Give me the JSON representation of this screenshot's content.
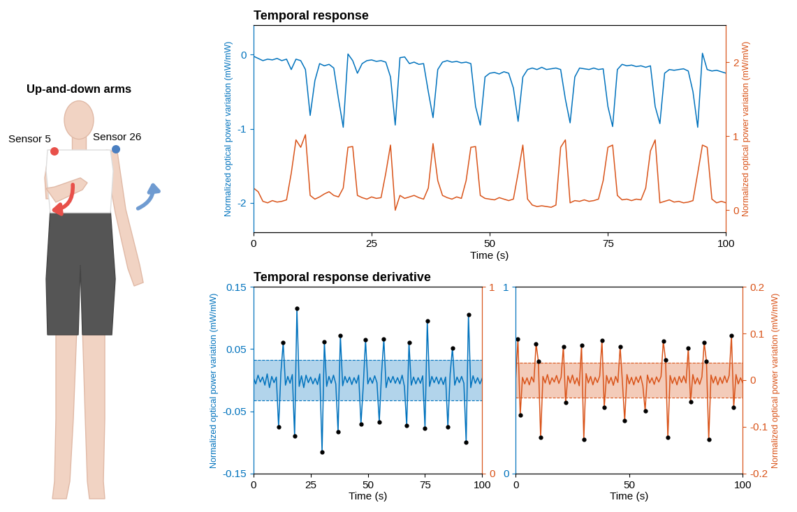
{
  "illustration": {
    "title": "Up-and-down arms",
    "sensors": [
      {
        "label": "Sensor 5"
      },
      {
        "label": "Sensor 26"
      }
    ]
  },
  "chart_data": [
    {
      "type": "line",
      "title": "Temporal response",
      "x_label": "Time (s)",
      "y_label": "Normalized optical power variation (mW/mW)",
      "y2_label": "Normalized optical power variation (mW/mW)",
      "x": [
        0,
        1,
        2,
        3,
        4,
        5,
        6,
        7,
        8,
        9,
        10,
        11,
        12,
        13,
        14,
        15,
        16,
        17,
        18,
        19,
        20,
        21,
        22,
        23,
        24,
        25,
        26,
        27,
        28,
        29,
        30,
        31,
        32,
        33,
        34,
        35,
        36,
        37,
        38,
        39,
        40,
        41,
        42,
        43,
        44,
        45,
        46,
        47,
        48,
        49,
        50,
        51,
        52,
        53,
        54,
        55,
        56,
        57,
        58,
        59,
        60,
        61,
        62,
        63,
        64,
        65,
        66,
        67,
        68,
        69,
        70,
        71,
        72,
        73,
        74,
        75,
        76,
        77,
        78,
        79,
        80,
        81,
        82,
        83,
        84,
        85,
        86,
        87,
        88,
        89,
        90,
        91,
        92,
        93,
        94,
        95,
        96,
        97,
        98,
        99,
        100
      ],
      "xlim": [
        0,
        100
      ],
      "xticks": [
        0,
        25,
        50,
        75,
        100
      ],
      "ylim": [
        -2.4,
        0.4
      ],
      "yticks": [
        -2,
        -1,
        0
      ],
      "y2lim": [
        -0.3,
        2.5
      ],
      "y2ticks": [
        0,
        1,
        2
      ],
      "series": [
        {
          "color": "#0072BD",
          "values": [
            -0.02,
            -0.05,
            -0.08,
            -0.06,
            -0.07,
            -0.05,
            -0.08,
            -0.06,
            -0.2,
            -0.06,
            -0.08,
            -0.2,
            -0.82,
            -0.35,
            -0.12,
            -0.15,
            -0.13,
            -0.18,
            -0.6,
            -0.98,
            0.01,
            -0.08,
            -0.25,
            -0.12,
            -0.08,
            -0.07,
            -0.09,
            -0.08,
            -0.1,
            -0.3,
            -0.95,
            -0.04,
            -0.03,
            -0.12,
            -0.1,
            -0.13,
            -0.12,
            -0.5,
            -0.85,
            -0.2,
            -0.1,
            -0.08,
            -0.1,
            -0.09,
            -0.11,
            -0.1,
            -0.12,
            -0.7,
            -0.95,
            -0.3,
            -0.25,
            -0.24,
            -0.26,
            -0.23,
            -0.25,
            -0.45,
            -0.9,
            -0.3,
            -0.2,
            -0.18,
            -0.2,
            -0.17,
            -0.2,
            -0.19,
            -0.18,
            -0.2,
            -0.6,
            -0.92,
            -0.3,
            -0.18,
            -0.19,
            -0.2,
            -0.18,
            -0.2,
            -0.19,
            -0.7,
            -0.97,
            -0.2,
            -0.13,
            -0.15,
            -0.14,
            -0.16,
            -0.15,
            -0.17,
            -0.15,
            -0.7,
            -0.93,
            -0.25,
            -0.2,
            -0.21,
            -0.2,
            -0.19,
            -0.22,
            -0.5,
            -0.98,
            0.02,
            -0.2,
            -0.22,
            -0.21,
            -0.23,
            -0.25
          ]
        },
        {
          "color": "#D95319",
          "axis": "y2",
          "values": [
            0.3,
            0.25,
            0.12,
            0.1,
            0.13,
            0.11,
            0.12,
            0.14,
            0.5,
            0.95,
            0.85,
            1.02,
            0.2,
            0.15,
            0.18,
            0.22,
            0.25,
            0.2,
            0.18,
            0.3,
            0.85,
            0.86,
            0.2,
            0.17,
            0.15,
            0.18,
            0.16,
            0.17,
            0.5,
            0.88,
            0.0,
            0.2,
            0.16,
            0.18,
            0.2,
            0.17,
            0.15,
            0.3,
            0.9,
            0.4,
            0.2,
            0.17,
            0.15,
            0.18,
            0.16,
            0.4,
            0.85,
            0.86,
            0.2,
            0.16,
            0.15,
            0.14,
            0.17,
            0.15,
            0.13,
            0.15,
            0.5,
            0.88,
            0.15,
            0.07,
            0.05,
            0.06,
            0.05,
            0.04,
            0.07,
            0.85,
            0.95,
            0.1,
            0.13,
            0.12,
            0.14,
            0.12,
            0.13,
            0.15,
            0.4,
            0.85,
            0.88,
            0.2,
            0.14,
            0.15,
            0.13,
            0.15,
            0.14,
            0.3,
            0.8,
            0.95,
            0.1,
            0.12,
            0.14,
            0.11,
            0.12,
            0.1,
            0.11,
            0.13,
            0.5,
            0.88,
            0.85,
            0.15,
            0.1,
            0.12,
            0.1
          ]
        }
      ]
    },
    {
      "type": "line",
      "title": "Temporal response derivative",
      "x_label": "Time (s)",
      "y_label": "Normalized optical power variation (mW/mW)",
      "x": [
        0,
        1,
        2,
        3,
        4,
        5,
        6,
        7,
        8,
        9,
        10,
        11,
        12,
        13,
        14,
        15,
        16,
        17,
        18,
        19,
        20,
        21,
        22,
        23,
        24,
        25,
        26,
        27,
        28,
        29,
        30,
        31,
        32,
        33,
        34,
        35,
        36,
        37,
        38,
        39,
        40,
        41,
        42,
        43,
        44,
        45,
        46,
        47,
        48,
        49,
        50,
        51,
        52,
        53,
        54,
        55,
        56,
        57,
        58,
        59,
        60,
        61,
        62,
        63,
        64,
        65,
        66,
        67,
        68,
        69,
        70,
        71,
        72,
        73,
        74,
        75,
        76,
        77,
        78,
        79,
        80,
        81,
        82,
        83,
        84,
        85,
        86,
        87,
        88,
        89,
        90,
        91,
        92,
        93,
        94,
        95,
        96,
        97,
        98,
        99,
        100
      ],
      "xlim": [
        0,
        100
      ],
      "xticks": [
        0,
        25,
        50,
        75,
        100
      ],
      "ylim": [
        -0.15,
        0.15
      ],
      "yticks": [
        -0.15,
        -0.05,
        0.05,
        0.15
      ],
      "y2lim": [
        0,
        1
      ],
      "y2ticks": [
        0,
        1
      ],
      "series": [
        {
          "color": "#0072BD",
          "band": [
            -0.033,
            0.033
          ],
          "values": [
            0.004,
            -0.006,
            0.008,
            -0.003,
            0.005,
            -0.008,
            0.01,
            -0.012,
            0.006,
            -0.004,
            0.005,
            -0.075,
            0.012,
            0.06,
            -0.008,
            0.006,
            -0.005,
            0.009,
            -0.09,
            0.115,
            -0.01,
            0.007,
            -0.012,
            0.008,
            -0.004,
            0.005,
            -0.006,
            0.003,
            -0.007,
            0.01,
            -0.115,
            0.062,
            -0.01,
            0.006,
            -0.005,
            0.008,
            -0.006,
            -0.083,
            0.072,
            -0.009,
            0.006,
            -0.004,
            0.005,
            -0.007,
            0.004,
            -0.005,
            0.008,
            -0.07,
            -0.01,
            0.065,
            -0.006,
            0.004,
            -0.005,
            0.007,
            -0.004,
            -0.067,
            0.01,
            0.066,
            -0.012,
            0.005,
            -0.004,
            0.006,
            -0.005,
            0.004,
            -0.006,
            0.008,
            -0.01,
            -0.073,
            0.06,
            -0.008,
            0.005,
            -0.006,
            0.004,
            -0.005,
            0.007,
            -0.077,
            0.095,
            -0.01,
            0.006,
            -0.004,
            0.005,
            -0.006,
            0.004,
            -0.007,
            0.005,
            -0.075,
            0.01,
            0.052,
            -0.008,
            0.005,
            -0.004,
            0.006,
            -0.005,
            -0.1,
            0.105,
            -0.012,
            0.007,
            -0.005,
            0.004,
            -0.006,
            0.003
          ],
          "peaks": {
            "color": "#000000",
            "marker": "o",
            "x": [
              11,
              13,
              18,
              19,
              30,
              31,
              37,
              38,
              47,
              49,
              55,
              57,
              67,
              68,
              75,
              76,
              85,
              87,
              93,
              94
            ],
            "values": [
              -0.075,
              0.06,
              -0.09,
              0.115,
              -0.115,
              0.062,
              -0.083,
              0.072,
              -0.07,
              0.065,
              -0.067,
              0.066,
              -0.073,
              0.06,
              -0.077,
              0.095,
              -0.075,
              0.052,
              -0.1,
              0.105
            ]
          }
        }
      ]
    },
    {
      "type": "line",
      "x_label": "Time (s)",
      "y2_label": "Normalized optical power variation (mW/mW)",
      "x": [
        0,
        1,
        2,
        3,
        4,
        5,
        6,
        7,
        8,
        9,
        10,
        11,
        12,
        13,
        14,
        15,
        16,
        17,
        18,
        19,
        20,
        21,
        22,
        23,
        24,
        25,
        26,
        27,
        28,
        29,
        30,
        31,
        32,
        33,
        34,
        35,
        36,
        37,
        38,
        39,
        40,
        41,
        42,
        43,
        44,
        45,
        46,
        47,
        48,
        49,
        50,
        51,
        52,
        53,
        54,
        55,
        56,
        57,
        58,
        59,
        60,
        61,
        62,
        63,
        64,
        65,
        66,
        67,
        68,
        69,
        70,
        71,
        72,
        73,
        74,
        75,
        76,
        77,
        78,
        79,
        80,
        81,
        82,
        83,
        84,
        85,
        86,
        87,
        88,
        89,
        90,
        91,
        92,
        93,
        94,
        95,
        96,
        97,
        98,
        99,
        100
      ],
      "xlim": [
        0,
        100
      ],
      "xticks": [
        0,
        50,
        100
      ],
      "ylim": [
        0,
        1
      ],
      "yticks": [
        0,
        1
      ],
      "y2lim": [
        -0.2,
        0.2
      ],
      "y2ticks": [
        -0.2,
        -0.1,
        0,
        0.1,
        0.2
      ],
      "series": [
        {
          "color": "#D95319",
          "axis": "y2",
          "band": [
            -0.038,
            0.038
          ],
          "values": [
            0.003,
            0.088,
            -0.075,
            0.006,
            -0.008,
            0.005,
            -0.01,
            0.007,
            -0.004,
            0.078,
            0.04,
            -0.123,
            0.008,
            -0.006,
            0.012,
            -0.009,
            0.005,
            -0.004,
            0.01,
            -0.007,
            0.006,
            0.072,
            -0.048,
            0.009,
            -0.006,
            0.011,
            -0.008,
            0.005,
            -0.012,
            0.075,
            -0.127,
            0.014,
            -0.006,
            0.008,
            -0.01,
            0.006,
            -0.005,
            0.009,
            0.085,
            -0.058,
            0.01,
            -0.007,
            0.006,
            -0.011,
            0.008,
            -0.005,
            0.071,
            -0.004,
            -0.087,
            0.012,
            -0.008,
            0.006,
            -0.01,
            0.007,
            -0.005,
            0.009,
            -0.012,
            -0.065,
            0.011,
            -0.006,
            0.005,
            -0.009,
            0.007,
            -0.004,
            0.008,
            0.083,
            0.043,
            -0.123,
            0.01,
            -0.007,
            0.006,
            -0.01,
            0.008,
            -0.005,
            0.009,
            -0.006,
            0.068,
            -0.047,
            0.012,
            -0.008,
            0.005,
            -0.009,
            0.007,
            0.08,
            0.04,
            -0.127,
            0.011,
            -0.006,
            0.008,
            -0.01,
            0.006,
            -0.007,
            0.009,
            -0.005,
            0.01,
            0.095,
            -0.058,
            0.012,
            -0.008,
            0.005,
            -0.006
          ],
          "peaks": {
            "color": "#000000",
            "marker": "o",
            "x": [
              1,
              2,
              9,
              10,
              11,
              21,
              22,
              29,
              30,
              38,
              39,
              46,
              48,
              57,
              65,
              66,
              67,
              76,
              77,
              83,
              84,
              85,
              95,
              96
            ],
            "values": [
              0.088,
              -0.075,
              0.078,
              0.04,
              -0.123,
              0.072,
              -0.048,
              0.075,
              -0.127,
              0.085,
              -0.058,
              0.071,
              -0.087,
              -0.065,
              0.083,
              0.043,
              -0.123,
              0.068,
              -0.047,
              0.08,
              0.04,
              -0.127,
              0.095,
              -0.058
            ]
          }
        }
      ]
    }
  ]
}
